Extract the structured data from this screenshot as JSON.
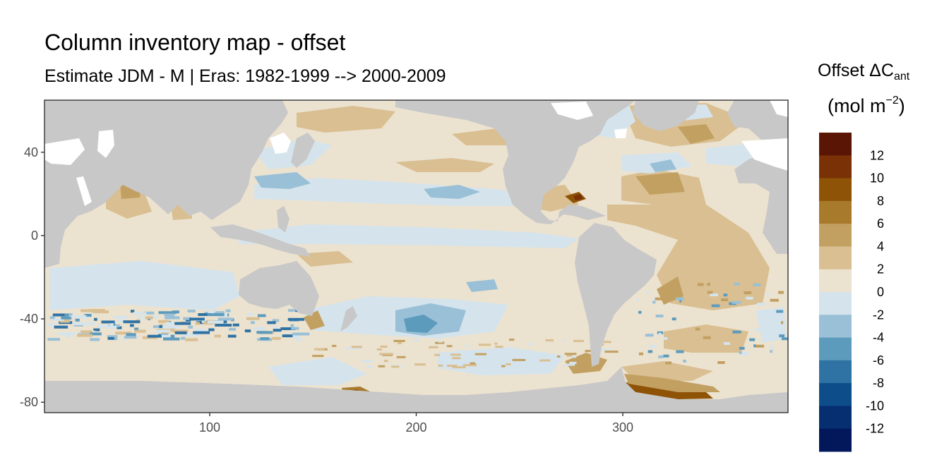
{
  "title": "Column inventory map - offset",
  "subtitle": "Estimate JDM - M | Eras: 1982-1999 --> 2000-2009",
  "legend": {
    "title_main": "Offset ΔC",
    "title_sub": "ant",
    "unit_pre": "(mol m",
    "unit_sup": "−2",
    "unit_post": ")",
    "labels": [
      "12",
      "10",
      "8",
      "6",
      "4",
      "2",
      "0",
      "-2",
      "-4",
      "-6",
      "-8",
      "-10",
      "-12"
    ],
    "bins": [
      {
        "range": "12 to 14",
        "color": "#5a1505"
      },
      {
        "range": "10 to 12",
        "color": "#7a3106"
      },
      {
        "range": "8 to 10",
        "color": "#8e5306"
      },
      {
        "range": "6 to 8",
        "color": "#a87a2c"
      },
      {
        "range": "4 to 6",
        "color": "#c2a061"
      },
      {
        "range": "2 to 4",
        "color": "#d9bf91"
      },
      {
        "range": "0 to 2",
        "color": "#ece2d0"
      },
      {
        "range": "-2 to 0",
        "color": "#d5e4ec"
      },
      {
        "range": "-4 to -2",
        "color": "#99c0d6"
      },
      {
        "range": "-6 to -4",
        "color": "#5d9bbd"
      },
      {
        "range": "-8 to -6",
        "color": "#2f73a4"
      },
      {
        "range": "-10 to -8",
        "color": "#0d4d89"
      },
      {
        "range": "-12 to -10",
        "color": "#062f72"
      },
      {
        "range": "-14 to -12",
        "color": "#03185a"
      }
    ]
  },
  "axes": {
    "x_ticks": [
      "100",
      "200",
      "300"
    ],
    "y_ticks": [
      "40",
      "0",
      "-40",
      "-80"
    ],
    "xlim": [
      20,
      380
    ],
    "ylim": [
      -85,
      65
    ]
  },
  "colors": {
    "land": "#c8c8c8",
    "ocean_background": "#ece2d0",
    "unmapped": "#ffffff"
  }
}
